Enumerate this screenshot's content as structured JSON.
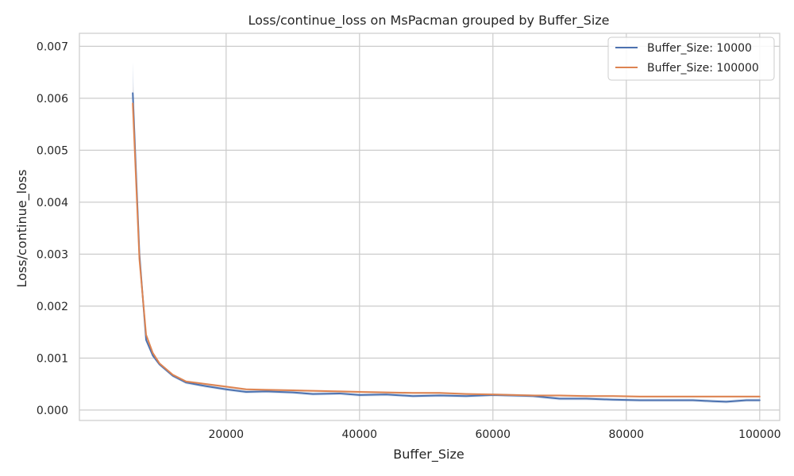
{
  "chart_data": {
    "type": "line",
    "title": "Loss/continue_loss on MsPacman grouped by Buffer_Size",
    "xlabel": "Buffer_Size",
    "ylabel": "Loss/continue_loss",
    "xlim": [
      -2000,
      103000
    ],
    "ylim": [
      -0.0002,
      0.00725
    ],
    "x_ticks": [
      20000,
      40000,
      60000,
      80000,
      100000
    ],
    "x_tick_labels": [
      "20000",
      "40000",
      "60000",
      "80000",
      "100000"
    ],
    "y_ticks": [
      0.0,
      0.001,
      0.002,
      0.003,
      0.004,
      0.005,
      0.006,
      0.007
    ],
    "y_tick_labels": [
      "0.000",
      "0.001",
      "0.002",
      "0.003",
      "0.004",
      "0.005",
      "0.006",
      "0.007"
    ],
    "grid": true,
    "legend_position": "top-right",
    "x": [
      6000,
      7000,
      8000,
      9000,
      10000,
      12000,
      14000,
      17000,
      20000,
      23000,
      26000,
      30000,
      33000,
      37000,
      40000,
      44000,
      48000,
      52000,
      56000,
      60000,
      63000,
      66000,
      70000,
      74000,
      78000,
      82000,
      86000,
      90000,
      93000,
      95000,
      98000,
      100000
    ],
    "series": [
      {
        "name": "Buffer_Size: 10000",
        "color": "#4c72b0",
        "values": [
          0.0061,
          0.003,
          0.00135,
          0.00105,
          0.00088,
          0.00066,
          0.00053,
          0.00046,
          0.0004,
          0.00035,
          0.00036,
          0.00034,
          0.00031,
          0.00032,
          0.00029,
          0.0003,
          0.00027,
          0.00028,
          0.00027,
          0.00029,
          0.00028,
          0.00027,
          0.00022,
          0.00022,
          0.0002,
          0.00019,
          0.00019,
          0.00019,
          0.00017,
          0.00016,
          0.00019,
          0.00019
        ],
        "band": 3e-05
      },
      {
        "name": "Buffer_Size: 100000",
        "color": "#dd8452",
        "values": [
          0.0059,
          0.0029,
          0.00145,
          0.0011,
          0.0009,
          0.00068,
          0.00055,
          0.0005,
          0.00045,
          0.0004,
          0.00039,
          0.00038,
          0.00037,
          0.00036,
          0.00035,
          0.00034,
          0.00033,
          0.00033,
          0.00031,
          0.0003,
          0.00029,
          0.00028,
          0.00028,
          0.00027,
          0.00027,
          0.00026,
          0.00026,
          0.00026,
          0.00026,
          0.00026,
          0.00026,
          0.00026
        ],
        "band": 2e-05
      }
    ]
  }
}
